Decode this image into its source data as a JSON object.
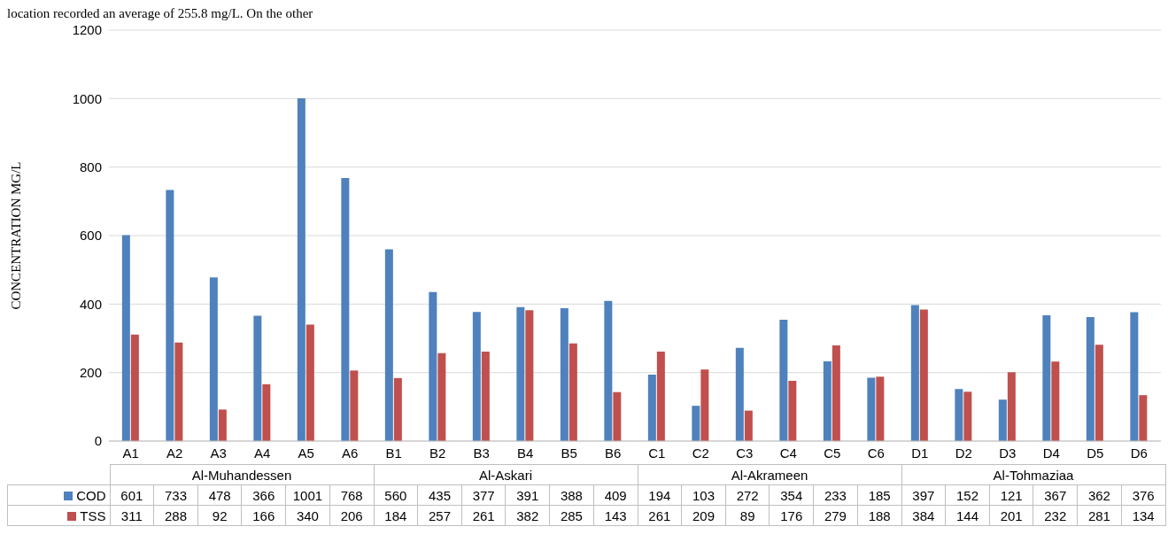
{
  "chart_data": {
    "type": "bar",
    "ylabel": "CONCENTRATION MG/L",
    "categories": [
      "A1",
      "A2",
      "A3",
      "A4",
      "A5",
      "A6",
      "B1",
      "B2",
      "B3",
      "B4",
      "B5",
      "B6",
      "C1",
      "C2",
      "C3",
      "C4",
      "C5",
      "C6",
      "D1",
      "D2",
      "D3",
      "D4",
      "D5",
      "D6"
    ],
    "series": [
      {
        "name": "COD",
        "color": "#4f81bd",
        "values": [
          601,
          733,
          478,
          366,
          1001,
          768,
          560,
          435,
          377,
          391,
          388,
          409,
          194,
          103,
          272,
          354,
          233,
          185,
          397,
          152,
          121,
          367,
          362,
          376
        ]
      },
      {
        "name": "TSS",
        "color": "#c0504d",
        "values": [
          311,
          288,
          92,
          166,
          340,
          206,
          184,
          257,
          261,
          382,
          285,
          143,
          261,
          209,
          89,
          176,
          279,
          188,
          384,
          144,
          201,
          232,
          281,
          134
        ]
      }
    ],
    "ylim": [
      0,
      1200
    ],
    "yticks": [
      0,
      200,
      400,
      600,
      800,
      1000,
      1200
    ],
    "grid": "y",
    "legend": "bottom",
    "data_labels": true,
    "annotations": [
      "location recorded an average of 255.8 mg/L. On the other",
      "Al-Muhandessen",
      "Al-Askari",
      "Al-Akrameen",
      "Al-Tohmaziaa"
    ]
  }
}
